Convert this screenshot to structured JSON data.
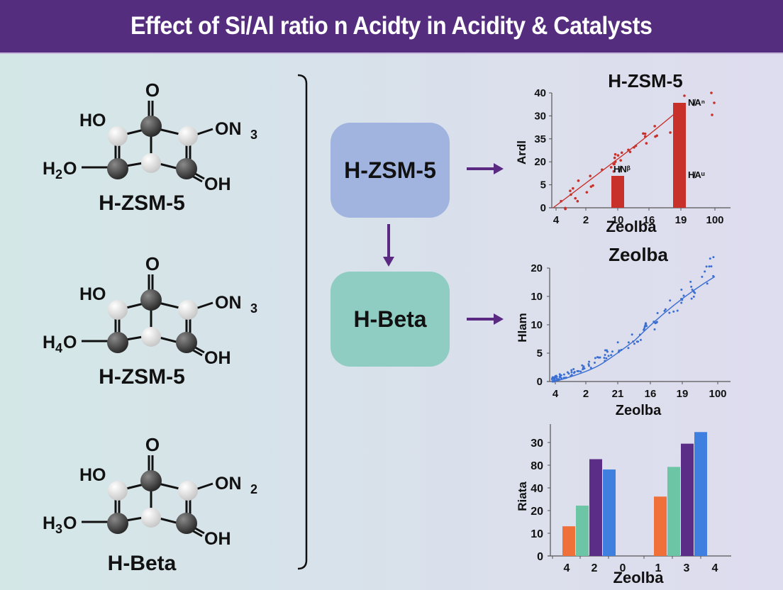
{
  "header": {
    "title": "Effect of Si/Al ratio n Acidty in Acidity & Catalysts",
    "background": "#552d7f"
  },
  "molecules": [
    {
      "label": "H-ZSM-5",
      "groups": {
        "top": "O",
        "upper_left": "HO",
        "upper_right_base": "ON",
        "upper_right_sub": "3",
        "left_base": "H",
        "left_sub": "2",
        "left_tail": "O",
        "lower_right": "OH"
      }
    },
    {
      "label": "H-ZSM-5",
      "groups": {
        "top": "O",
        "upper_left": "HO",
        "upper_right_base": "ON",
        "upper_right_sub": "3",
        "left_base": "H",
        "left_sub": "4",
        "left_tail": "O",
        "lower_right": "OH"
      }
    },
    {
      "label": "H-Beta",
      "groups": {
        "top": "O",
        "upper_left": "HO",
        "upper_right_base": "ON",
        "upper_right_sub": "2",
        "left_base": "H",
        "left_sub": "3",
        "left_tail": "O",
        "lower_right": "OH"
      }
    }
  ],
  "flow": {
    "boxes": [
      {
        "label": "H-ZSM-5",
        "color": "#a1b4df"
      },
      {
        "label": "H-Beta",
        "color": "#8fcdc2"
      }
    ],
    "arrow_color": "#5a2a82"
  },
  "chart_data": [
    {
      "type": "scatter",
      "title": "H-ZSM-5",
      "xlabel": "Zeolba",
      "ylabel": "Ardl",
      "x_ticks": [
        "4",
        "2",
        "10",
        "16",
        "19",
        "100"
      ],
      "y_ticks": [
        "0",
        "5",
        "20",
        "35",
        "30",
        "40"
      ],
      "color": "#c8302a",
      "bars": [
        {
          "x_index": 2,
          "height_frac": 0.25,
          "label": "H̸Nᵝ"
        },
        {
          "x_index": 4,
          "height_frac": 0.9,
          "label_top": "N̸Aⁿ",
          "label_mid": "H̸Aᵘ"
        }
      ],
      "trend": "linear increasing",
      "grid": false
    },
    {
      "type": "scatter",
      "title": "Zeolba",
      "xlabel": "Zeolba",
      "ylabel": "Hlam",
      "x_ticks": [
        "4",
        "2",
        "21",
        "16",
        "19",
        "100"
      ],
      "y_ticks": [
        "0",
        "5",
        "10",
        "10",
        "20"
      ],
      "color": "#3b6fd1",
      "trend": "curved increasing",
      "grid": false
    },
    {
      "type": "bar",
      "title": "Zeolba",
      "xlabel": "Zeolba",
      "ylabel": "Riata",
      "x_ticks": [
        "4",
        "2",
        "0",
        "1",
        "3",
        "4"
      ],
      "y_ticks": [
        "0",
        "10",
        "20",
        "40",
        "80",
        "30"
      ],
      "series_colors": [
        "#f0703a",
        "#6cc5a4",
        "#5b2d86",
        "#3f7fe0"
      ],
      "groups": [
        {
          "values_frac": [
            0.23,
            0.39,
            0.75,
            0.67
          ]
        },
        {
          "values_frac": [
            0.46,
            0.69,
            0.87,
            0.96
          ]
        }
      ],
      "grid": false
    }
  ]
}
